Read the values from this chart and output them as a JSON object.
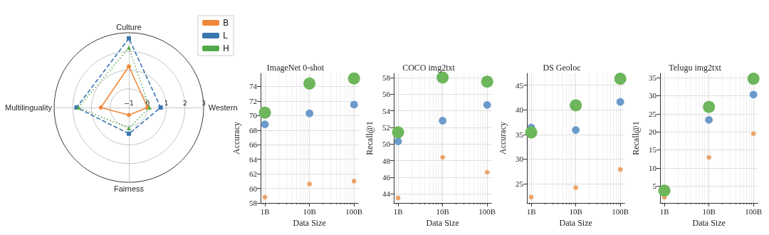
{
  "chart_data": [
    {
      "type": "radar",
      "categories": [
        "Culture",
        "Western",
        "Fairness",
        "Multilinguality"
      ],
      "ylim": [
        -1,
        3
      ],
      "yticks": [
        {
          "value": -1,
          "label": "−1"
        },
        0,
        1,
        2,
        3
      ],
      "grid": true,
      "legend": "top right",
      "series": [
        {
          "name": "B",
          "color": "#f0883a",
          "marker": "circle",
          "line_style": "solid",
          "values": [
            1.2,
            0.0,
            -0.6,
            0.5
          ]
        },
        {
          "name": "L",
          "color": "#3a75b0",
          "marker": "square",
          "line_style": "dashed",
          "values": [
            2.7,
            0.7,
            0.4,
            1.8
          ]
        },
        {
          "name": "H",
          "color": "#55a84a",
          "marker": "triangle",
          "line_style": "dotted",
          "values": [
            2.2,
            0.1,
            0.1,
            1.7
          ]
        }
      ]
    },
    {
      "type": "bubble",
      "title": "ImageNet 0-shot",
      "xlabel": "Data Size",
      "ylabel": "Accuracy",
      "log": "x",
      "grid": true,
      "marker": "circle",
      "x": [
        1000000000,
        10000000000,
        100000000000
      ],
      "xlim": [
        800000000,
        125000000000
      ],
      "xticks": [
        {
          "value": 1000000000,
          "label": "1B"
        },
        {
          "value": 10000000000,
          "label": "10B"
        },
        {
          "value": 100000000000,
          "label": "100B"
        }
      ],
      "ylim": [
        58,
        75.8
      ],
      "yticks": [
        58,
        60,
        62,
        64,
        66,
        68,
        70,
        72,
        74
      ],
      "series": [
        {
          "color": "#eaa56c",
          "values": [
            58.8,
            60.6,
            61.0
          ],
          "sizes": [
            0.16,
            0.16,
            0.16
          ]
        },
        {
          "color": "#6b9acb",
          "values": [
            68.8,
            70.3,
            71.5
          ],
          "sizes": [
            0.4,
            0.4,
            0.4
          ]
        },
        {
          "color": "#6db65b",
          "values": [
            70.4,
            74.4,
            75.1
          ],
          "sizes": [
            1,
            1,
            1
          ]
        }
      ]
    },
    {
      "type": "bubble",
      "title": "COCO img2txt",
      "xlabel": "Data Size",
      "ylabel": "Recall@1",
      "log": "x",
      "grid": true,
      "marker": "circle",
      "x": [
        1000000000,
        10000000000,
        100000000000
      ],
      "xlim": [
        800000000,
        125000000000
      ],
      "xticks": [
        {
          "value": 1000000000,
          "label": "1B"
        },
        {
          "value": 10000000000,
          "label": "10B"
        },
        {
          "value": 100000000000,
          "label": "100B"
        }
      ],
      "ylim": [
        42.9,
        58.5
      ],
      "yticks": [
        44,
        46,
        48,
        50,
        52,
        54,
        56,
        58
      ],
      "series": [
        {
          "color": "#eaa56c",
          "values": [
            43.5,
            48.4,
            46.6
          ],
          "sizes": [
            0.16,
            0.16,
            0.16
          ]
        },
        {
          "color": "#6b9acb",
          "values": [
            50.3,
            52.8,
            54.7
          ],
          "sizes": [
            0.4,
            0.4,
            0.4
          ]
        },
        {
          "color": "#6db65b",
          "values": [
            51.4,
            58.0,
            57.5
          ],
          "sizes": [
            1,
            1,
            1
          ]
        }
      ]
    },
    {
      "type": "bubble",
      "title": "DS Geoloc",
      "xlabel": "Data Size",
      "ylabel": "Accuracy",
      "log": "x",
      "grid": true,
      "marker": "circle",
      "x": [
        1000000000,
        10000000000,
        100000000000
      ],
      "xlim": [
        800000000,
        125000000000
      ],
      "xticks": [
        {
          "value": 1000000000,
          "label": "1B"
        },
        {
          "value": 10000000000,
          "label": "10B"
        },
        {
          "value": 100000000000,
          "label": "100B"
        }
      ],
      "ylim": [
        21.1,
        47.4
      ],
      "yticks": [
        25,
        30,
        35,
        40,
        45
      ],
      "series": [
        {
          "color": "#eaa56c",
          "values": [
            22.3,
            24.2,
            27.9
          ],
          "sizes": [
            0.16,
            0.16,
            0.16
          ]
        },
        {
          "color": "#6b9acb",
          "values": [
            36.4,
            35.9,
            41.6
          ],
          "sizes": [
            0.4,
            0.4,
            0.4
          ]
        },
        {
          "color": "#6db65b",
          "values": [
            35.4,
            40.9,
            46.3
          ],
          "sizes": [
            1,
            1,
            1
          ]
        }
      ]
    },
    {
      "type": "bubble",
      "title": "Telugu img2txt",
      "xlabel": "Data Size",
      "ylabel": "Recall@1",
      "log": "x",
      "grid": true,
      "marker": "circle",
      "x": [
        1000000000,
        10000000000,
        100000000000
      ],
      "xlim": [
        800000000,
        125000000000
      ],
      "xticks": [
        {
          "value": 1000000000,
          "label": "1B"
        },
        {
          "value": 10000000000,
          "label": "10B"
        },
        {
          "value": 100000000000,
          "label": "100B"
        }
      ],
      "ylim": [
        0.3,
        36.2
      ],
      "yticks": [
        5,
        10,
        15,
        20,
        25,
        30,
        35
      ],
      "series": [
        {
          "color": "#eaa56c",
          "values": [
            1.9,
            12.9,
            19.5
          ],
          "sizes": [
            0.16,
            0.16,
            0.16
          ]
        },
        {
          "color": "#6b9acb",
          "values": [
            null,
            23.3,
            30.3
          ],
          "sizes": [
            null,
            0.4,
            0.4
          ]
        },
        {
          "color": "#6db65b",
          "values": [
            3.7,
            26.9,
            34.7
          ],
          "sizes": [
            1,
            1,
            1
          ]
        }
      ]
    }
  ]
}
